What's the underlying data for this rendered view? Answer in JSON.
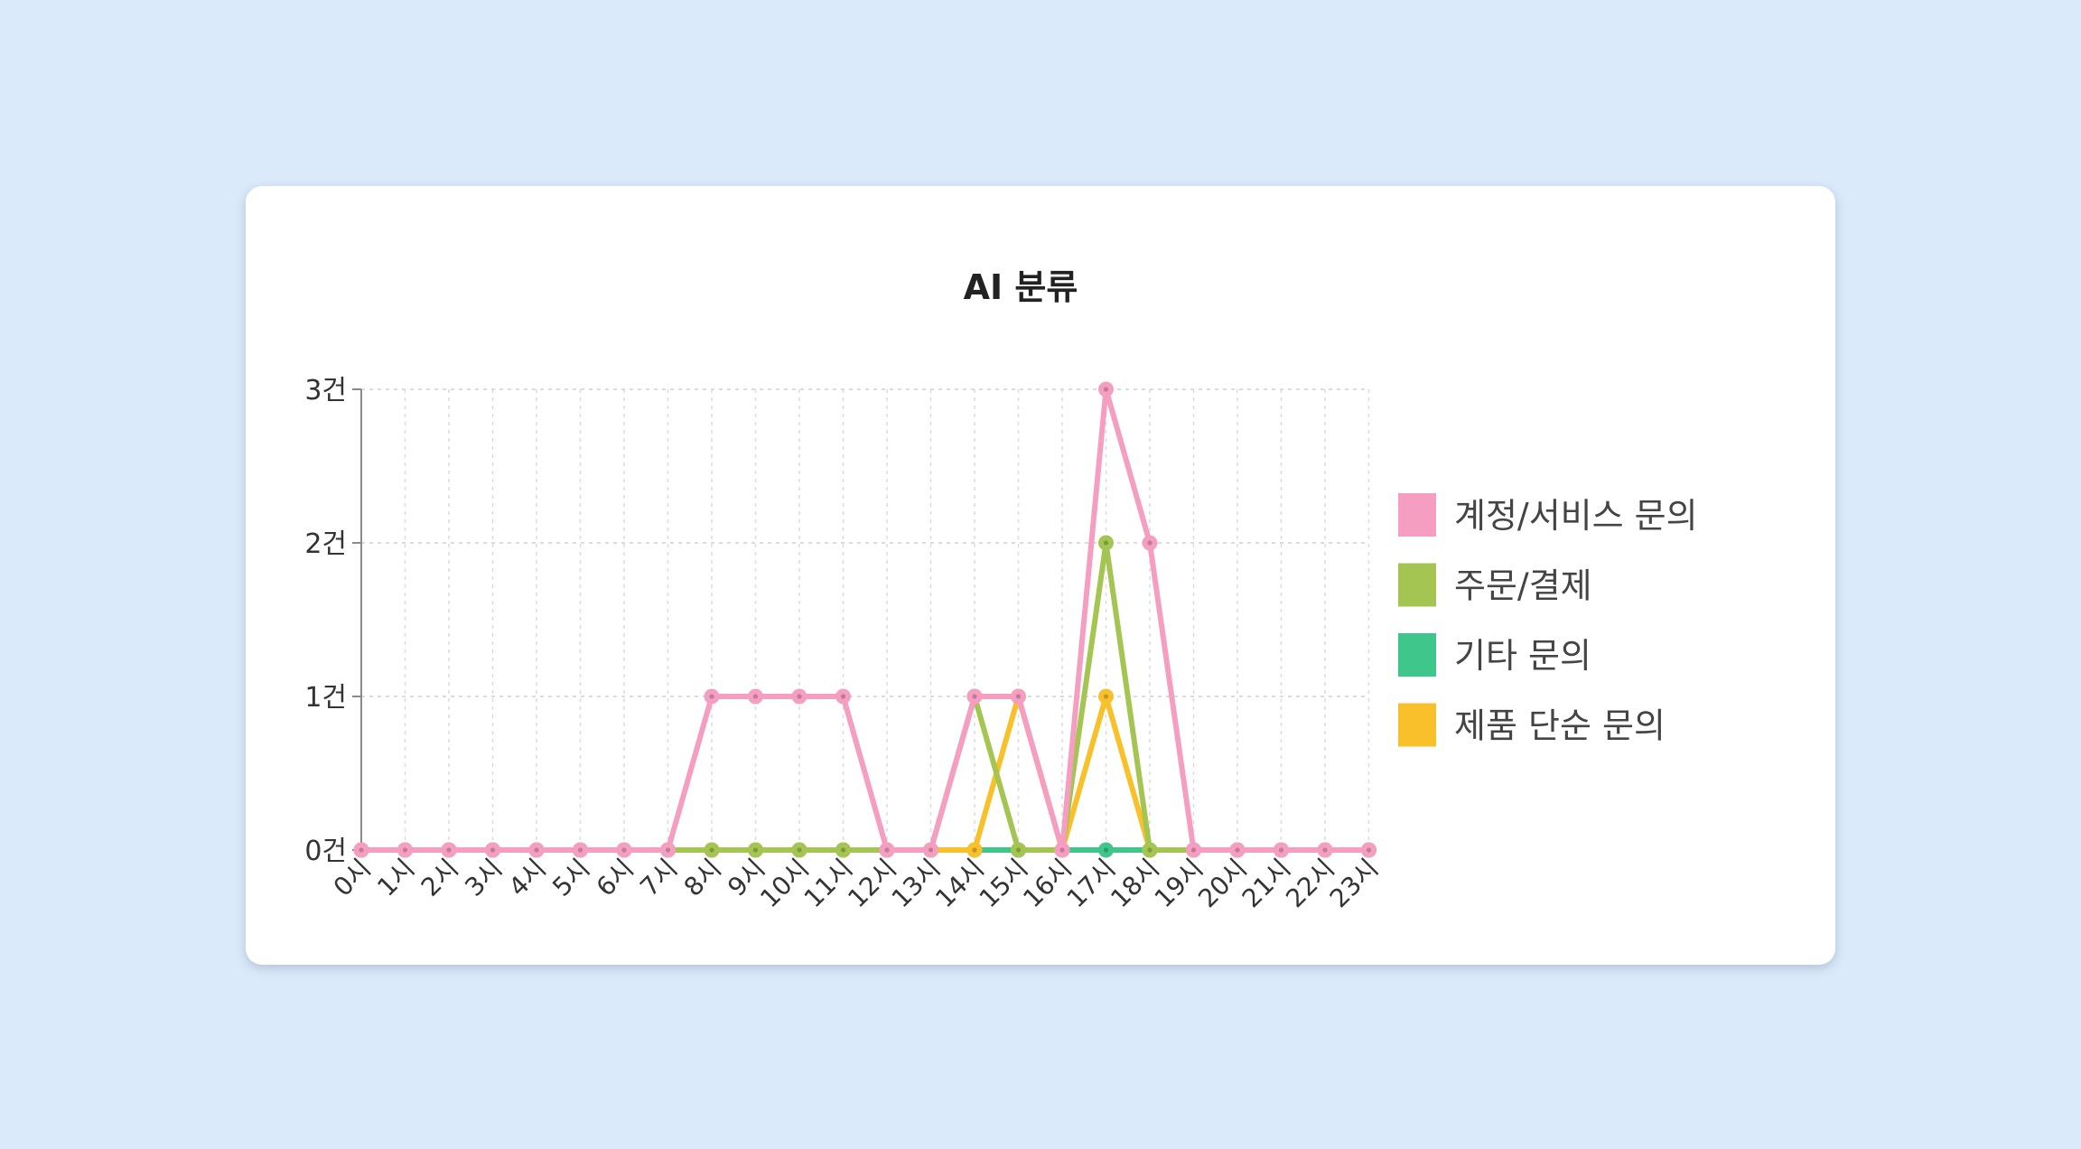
{
  "chart_data": {
    "type": "line",
    "title": "AI 분류",
    "xlabel": "",
    "ylabel": "",
    "categories": [
      "0시",
      "1시",
      "2시",
      "3시",
      "4시",
      "5시",
      "6시",
      "7시",
      "8시",
      "9시",
      "10시",
      "11시",
      "12시",
      "13시",
      "14시",
      "15시",
      "16시",
      "17시",
      "18시",
      "19시",
      "20시",
      "21시",
      "22시",
      "23시"
    ],
    "yticks": [
      "0건",
      "1건",
      "2건",
      "3건"
    ],
    "ylim": [
      0,
      3
    ],
    "grid": true,
    "legend_position": "right",
    "series": [
      {
        "name": "기타 문의",
        "color": "#3ec68b",
        "values": [
          0,
          0,
          0,
          0,
          0,
          0,
          0,
          0,
          0,
          0,
          0,
          0,
          0,
          0,
          0,
          0,
          0,
          0,
          0,
          0,
          0,
          0,
          0,
          0
        ]
      },
      {
        "name": "제품 단순 문의",
        "color": "#f8c12c",
        "values": [
          0,
          0,
          0,
          0,
          0,
          0,
          0,
          0,
          0,
          0,
          0,
          0,
          0,
          0,
          0,
          1,
          0,
          1,
          0,
          0,
          0,
          0,
          0,
          0
        ]
      },
      {
        "name": "주문/결제",
        "color": "#a5c552",
        "values": [
          0,
          0,
          0,
          0,
          0,
          0,
          0,
          0,
          0,
          0,
          0,
          0,
          0,
          0,
          1,
          0,
          0,
          2,
          0,
          0,
          0,
          0,
          0,
          0
        ]
      },
      {
        "name": "계정/서비스 문의",
        "color": "#f59ec2",
        "values": [
          0,
          0,
          0,
          0,
          0,
          0,
          0,
          0,
          1,
          1,
          1,
          1,
          0,
          0,
          1,
          1,
          0,
          3,
          2,
          0,
          0,
          0,
          0,
          0
        ]
      }
    ],
    "legend_order": [
      "계정/서비스 문의",
      "주문/결제",
      "기타 문의",
      "제품 단순 문의"
    ]
  }
}
